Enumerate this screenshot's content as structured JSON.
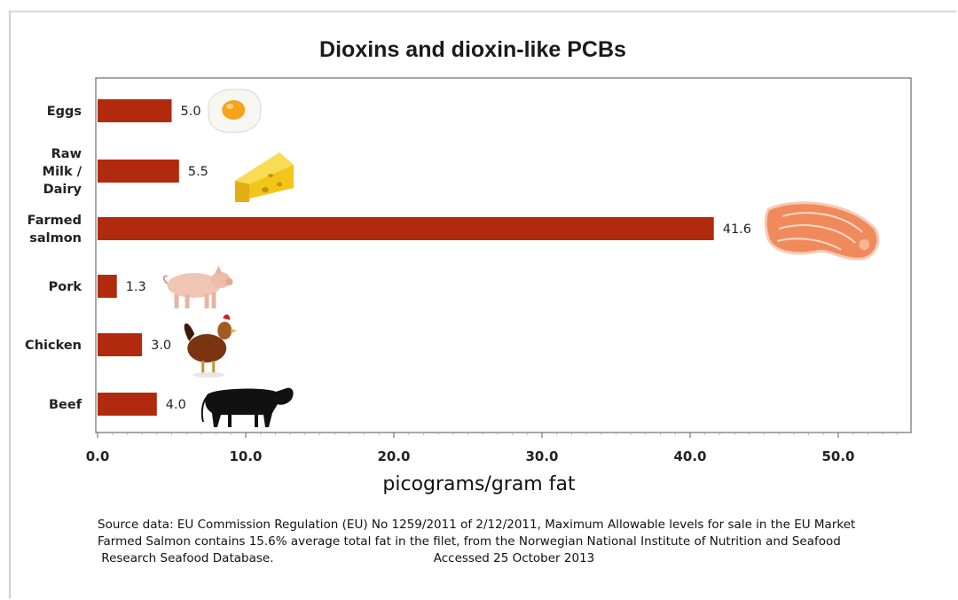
{
  "chart_data": {
    "type": "bar",
    "orientation": "horizontal",
    "title": "Dioxins and dioxin-like PCBs",
    "xlabel": "picograms/gram fat",
    "ylabel": "",
    "categories": [
      "Eggs",
      "Raw Milk / Dairy",
      "Farmed salmon",
      "Pork",
      "Chicken",
      "Beef"
    ],
    "category_label_lines": [
      [
        "Eggs"
      ],
      [
        "Raw",
        "Milk /",
        "Dairy"
      ],
      [
        "Farmed",
        "salmon"
      ],
      [
        "Pork"
      ],
      [
        "Chicken"
      ],
      [
        "Beef"
      ]
    ],
    "values": [
      5.0,
      5.5,
      41.6,
      1.3,
      3.0,
      4.0
    ],
    "value_labels": [
      "5.0",
      "5.5",
      "41.6",
      "1.3",
      "3.0",
      "4.0"
    ],
    "category_icons": [
      "fried-egg-icon",
      "cheese-icon",
      "salmon-steak-icon",
      "pig-icon",
      "chicken-icon",
      "cow-icon"
    ],
    "xlim": [
      0,
      55
    ],
    "x_ticks": [
      0,
      10,
      20,
      30,
      40,
      50
    ],
    "x_tick_labels": [
      "0.0",
      "10.0",
      "20.0",
      "30.0",
      "40.0",
      "50.0"
    ],
    "grid": false,
    "legend": "none",
    "bar_color": "#b22a0e"
  },
  "footer": {
    "source_line_1": "Source data: EU Commission Regulation (EU) No 1259/2011 of 2/12/2011, Maximum Allowable levels for sale in the EU Market",
    "source_line_2": "Farmed Salmon contains 15.6% average total fat in the filet, from the Norwegian National Institute of Nutrition and Seafood",
    "source_line_3": " Research Seafood Database.                                          Accessed 25 October 2013"
  }
}
